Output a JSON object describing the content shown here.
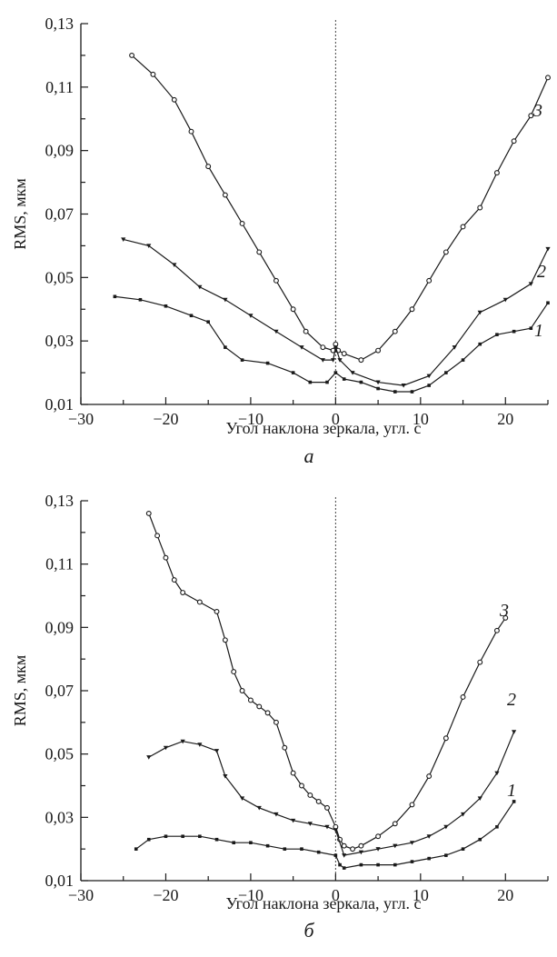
{
  "chart_data": [
    {
      "type": "line",
      "panel": "a",
      "xlabel": "Угол наклона зеркала, угл. с",
      "ylabel": "RMS, мкм",
      "xlim": [
        -30,
        25
      ],
      "ylim": [
        0.01,
        0.13
      ],
      "x_ticks": [
        "−30",
        "−20",
        "−10",
        "0",
        "10",
        "20"
      ],
      "x_tick_values": [
        -30,
        -20,
        -10,
        0,
        10,
        20
      ],
      "y_ticks": [
        "0,01",
        "0,03",
        "0,05",
        "0,07",
        "0,09",
        "0,11",
        "0,13"
      ],
      "y_tick_values": [
        0.01,
        0.03,
        0.05,
        0.07,
        0.09,
        0.11,
        0.13
      ],
      "grid": false,
      "vline_x": 0,
      "series": [
        {
          "name": "3",
          "marker": "circle",
          "x": [
            -24,
            -21.5,
            -19,
            -17,
            -15,
            -13,
            -11,
            -9,
            -7,
            -5,
            -3.5,
            -1.5,
            -0.3,
            0,
            0.3,
            1,
            3,
            5,
            7,
            9,
            11,
            13,
            15,
            17,
            19,
            21,
            23,
            25
          ],
          "y": [
            0.12,
            0.114,
            0.106,
            0.096,
            0.085,
            0.076,
            0.067,
            0.058,
            0.049,
            0.04,
            0.033,
            0.028,
            0.027,
            0.029,
            0.027,
            0.026,
            0.024,
            0.027,
            0.033,
            0.04,
            0.049,
            0.058,
            0.066,
            0.072,
            0.083,
            0.093,
            0.101,
            0.113
          ]
        },
        {
          "name": "2",
          "marker": "triangle",
          "x": [
            -25,
            -22,
            -19,
            -16,
            -13,
            -10,
            -7,
            -4,
            -1.5,
            -0.3,
            0,
            0.5,
            2,
            5,
            8,
            11,
            14,
            17,
            20,
            23,
            25
          ],
          "y": [
            0.062,
            0.06,
            0.054,
            0.047,
            0.043,
            0.038,
            0.033,
            0.028,
            0.024,
            0.024,
            0.028,
            0.024,
            0.02,
            0.017,
            0.016,
            0.019,
            0.028,
            0.039,
            0.043,
            0.048,
            0.059
          ]
        },
        {
          "name": "1",
          "marker": "square",
          "x": [
            -26,
            -23,
            -20,
            -17,
            -15,
            -13,
            -11,
            -8,
            -5,
            -3,
            -1,
            0,
            1,
            3,
            5,
            7,
            9,
            11,
            13,
            15,
            17,
            19,
            21,
            23,
            25
          ],
          "y": [
            0.044,
            0.043,
            0.041,
            0.038,
            0.036,
            0.028,
            0.024,
            0.023,
            0.02,
            0.017,
            0.017,
            0.02,
            0.018,
            0.017,
            0.015,
            0.014,
            0.014,
            0.016,
            0.02,
            0.024,
            0.029,
            0.032,
            0.033,
            0.034,
            0.042
          ]
        }
      ],
      "curve_labels": [
        "1",
        "2",
        "3"
      ]
    },
    {
      "type": "line",
      "panel": "б",
      "xlabel": "Угол наклона зеркала, угл. с",
      "ylabel": "RMS, мкм",
      "xlim": [
        -30,
        25
      ],
      "ylim": [
        0.01,
        0.13
      ],
      "x_ticks": [
        "−30",
        "−20",
        "−10",
        "0",
        "10",
        "20"
      ],
      "x_tick_values": [
        -30,
        -20,
        -10,
        0,
        10,
        20
      ],
      "y_ticks": [
        "0,01",
        "0,03",
        "0,05",
        "0,07",
        "0,09",
        "0,11",
        "0,13"
      ],
      "y_tick_values": [
        0.01,
        0.03,
        0.05,
        0.07,
        0.09,
        0.11,
        0.13
      ],
      "grid": false,
      "vline_x": 0,
      "series": [
        {
          "name": "3",
          "marker": "circle",
          "x": [
            -22,
            -21,
            -20,
            -19,
            -18,
            -16,
            -14,
            -13,
            -12,
            -11,
            -10,
            -9,
            -8,
            -7,
            -6,
            -5,
            -4,
            -3,
            -2,
            -1,
            0,
            0.5,
            1,
            2,
            3,
            5,
            7,
            9,
            11,
            13,
            15,
            17,
            19,
            20
          ],
          "y": [
            0.126,
            0.119,
            0.112,
            0.105,
            0.101,
            0.098,
            0.095,
            0.086,
            0.076,
            0.07,
            0.067,
            0.065,
            0.063,
            0.06,
            0.052,
            0.044,
            0.04,
            0.037,
            0.035,
            0.033,
            0.027,
            0.023,
            0.021,
            0.02,
            0.021,
            0.024,
            0.028,
            0.034,
            0.043,
            0.055,
            0.068,
            0.079,
            0.089,
            0.093
          ]
        },
        {
          "name": "2",
          "marker": "triangle",
          "x": [
            -22,
            -20,
            -18,
            -16,
            -14,
            -13,
            -11,
            -9,
            -7,
            -5,
            -3,
            -1,
            0,
            1,
            3,
            5,
            7,
            9,
            11,
            13,
            15,
            17,
            19,
            21
          ],
          "y": [
            0.049,
            0.052,
            0.054,
            0.053,
            0.051,
            0.043,
            0.036,
            0.033,
            0.031,
            0.029,
            0.028,
            0.027,
            0.026,
            0.018,
            0.019,
            0.02,
            0.021,
            0.022,
            0.024,
            0.027,
            0.031,
            0.036,
            0.044,
            0.057
          ]
        },
        {
          "name": "1",
          "marker": "square",
          "x": [
            -23.5,
            -22,
            -20,
            -18,
            -16,
            -14,
            -12,
            -10,
            -8,
            -6,
            -4,
            -2,
            0,
            0.5,
            1,
            3,
            5,
            7,
            9,
            11,
            13,
            15,
            17,
            19,
            21
          ],
          "y": [
            0.02,
            0.023,
            0.024,
            0.024,
            0.024,
            0.023,
            0.022,
            0.022,
            0.021,
            0.02,
            0.02,
            0.019,
            0.018,
            0.015,
            0.014,
            0.015,
            0.015,
            0.015,
            0.016,
            0.017,
            0.018,
            0.02,
            0.023,
            0.027,
            0.035
          ]
        }
      ],
      "curve_labels": [
        "1",
        "2",
        "3"
      ]
    }
  ]
}
